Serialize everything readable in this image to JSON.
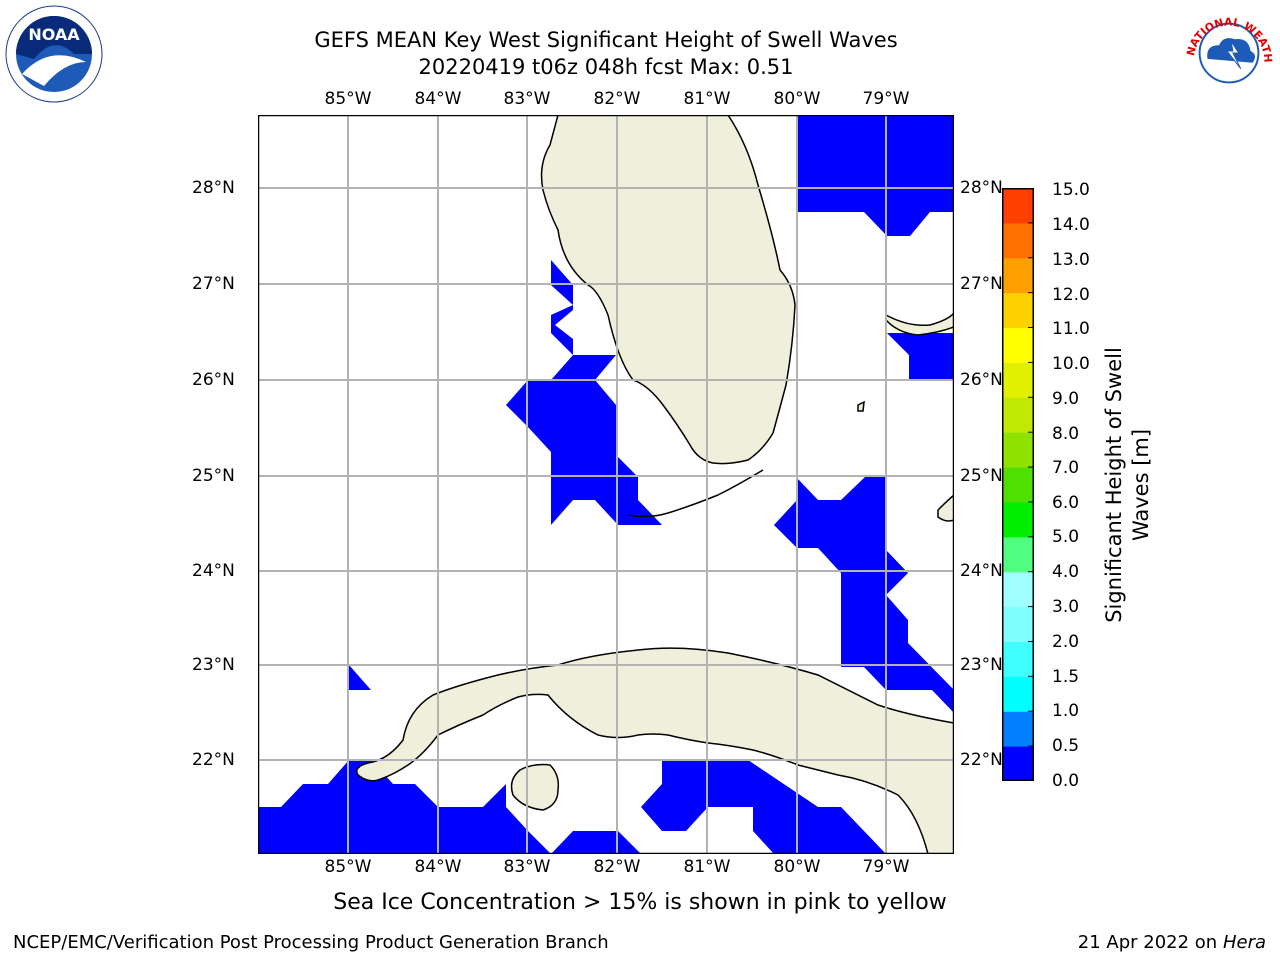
{
  "title": {
    "line1": "GEFS MEAN Key West Significant Height of Swell Waves",
    "line2": "20220419 t06z 048h fcst   Max: 0.51"
  },
  "map": {
    "lon_labels": [
      "85°W",
      "84°W",
      "83°W",
      "82°W",
      "81°W",
      "80°W",
      "79°W"
    ],
    "lat_labels": [
      "28°N",
      "27°N",
      "26°N",
      "25°N",
      "24°N",
      "23°N",
      "22°N"
    ],
    "extent": {
      "lon_min": -86.0,
      "lon_max": -78.25,
      "lat_min": 21.05,
      "lat_max": 28.8
    },
    "swell_color": "#0000ff",
    "land_color": "#efefdc",
    "grid_color": "#b3b3b3"
  },
  "colorbar": {
    "title": "Significant Height of Swell Waves [m]",
    "title_line1": "Significant Height of Swell",
    "title_line2": "Waves [m]",
    "ticks": [
      "0.0",
      "0.5",
      "1.0",
      "1.5",
      "2.0",
      "3.0",
      "4.0",
      "5.0",
      "6.0",
      "7.0",
      "8.0",
      "9.0",
      "10.0",
      "11.0",
      "12.0",
      "13.0",
      "14.0",
      "15.0"
    ],
    "colors": [
      "#0000ff",
      "#0080ff",
      "#00ffff",
      "#40ffff",
      "#80ffff",
      "#a0ffff",
      "#50ff80",
      "#00ee00",
      "#50e000",
      "#90e000",
      "#c0e800",
      "#e0f000",
      "#ffff00",
      "#ffd000",
      "#ffa000",
      "#ff7000",
      "#ff4000",
      "#ff0000"
    ]
  },
  "footer": {
    "ice_note": "Sea Ice Concentration > 15% is shown in pink to yellow",
    "left": "NCEP/EMC/Verification Post Processing Product Generation Branch",
    "date": "21 Apr 2022 on ",
    "host": "Hera"
  },
  "logos": {
    "noaa": "NOAA",
    "nws": "NATIONAL WEATHER SERVICE"
  }
}
